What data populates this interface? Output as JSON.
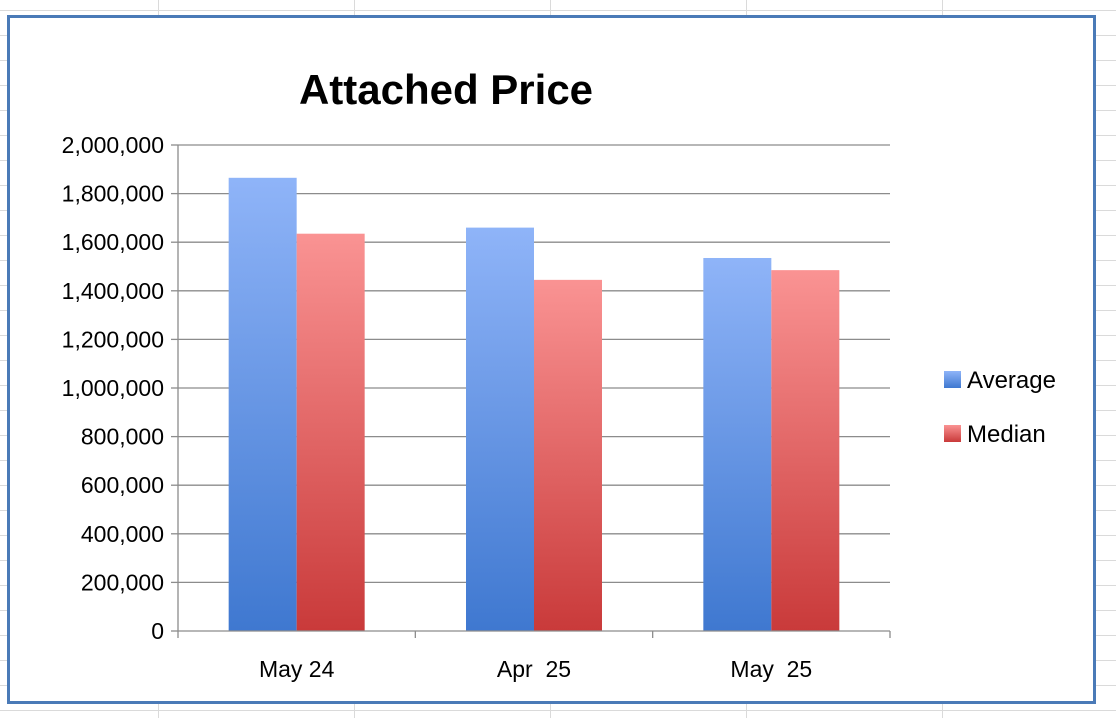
{
  "chart_data": {
    "type": "bar",
    "title": "Attached Price",
    "xlabel": "",
    "ylabel": "",
    "categories": [
      "May 24",
      "Apr  25",
      "May  25"
    ],
    "series": [
      {
        "name": "Average",
        "values": [
          1865000,
          1660000,
          1535000
        ],
        "color": "#8fb4f8",
        "color_bottom": "#3f78d0"
      },
      {
        "name": "Median",
        "values": [
          1635000,
          1445000,
          1485000
        ],
        "color": "#fa9393",
        "color_bottom": "#c93a3a"
      }
    ],
    "ylim": [
      0,
      2000000
    ],
    "y_ticks": [
      0,
      200000,
      400000,
      600000,
      800000,
      1000000,
      1200000,
      1400000,
      1600000,
      1800000,
      2000000
    ],
    "y_tick_labels": [
      "0",
      "200,000",
      "400,000",
      "600,000",
      "800,000",
      "1,000,000",
      "1,200,000",
      "1,400,000",
      "1,600,000",
      "1,800,000",
      "2,000,000"
    ],
    "grid": true,
    "legend_position": "right"
  },
  "frame_color": "#4a7ab7",
  "gridline_color": "#8c8c8c"
}
